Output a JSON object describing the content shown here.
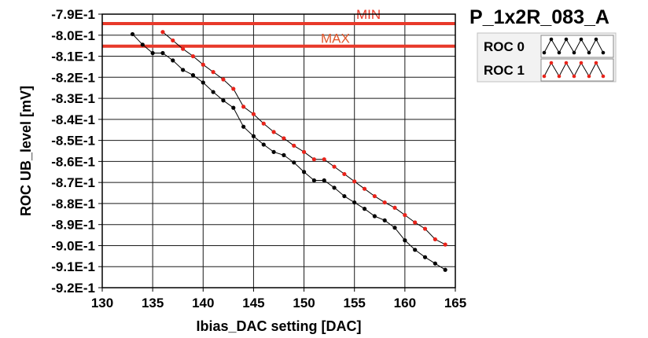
{
  "chart_data": {
    "type": "line",
    "title": "P_1x2R_083_A",
    "xlabel": "Ibias_DAC setting [DAC]",
    "ylabel": "ROC UB_level [mV]",
    "xlim": [
      130,
      165
    ],
    "ylim": [
      -0.92,
      -0.79
    ],
    "x_ticks": [
      130,
      135,
      140,
      145,
      150,
      155,
      160,
      165
    ],
    "x_tick_labels": [
      "130",
      "135",
      "140",
      "145",
      "150",
      "155",
      "160",
      "165"
    ],
    "y_ticks": [
      -0.79,
      -0.8,
      -0.81,
      -0.82,
      -0.83,
      -0.84,
      -0.85,
      -0.86,
      -0.87,
      -0.88,
      -0.89,
      -0.9,
      -0.91,
      -0.92
    ],
    "y_tick_labels": [
      "-7.9E-1",
      "-8.0E-1",
      "-8.1E-1",
      "-8.2E-1",
      "-8.3E-1",
      "-8.4E-1",
      "-8.5E-1",
      "-8.6E-1",
      "-8.7E-1",
      "-8.8E-1",
      "-8.9E-1",
      "-9.0E-1",
      "-9.1E-1",
      "-9.2E-1"
    ],
    "grid": true,
    "legend_position": "top-right",
    "limits": [
      {
        "label": "MIN",
        "value": -0.7945,
        "color": "#e8392a",
        "label_color": "#e8392a"
      },
      {
        "label": "MAX",
        "value": -0.8052,
        "color": "#e8392a",
        "label_color": "#e0562a"
      }
    ],
    "series": [
      {
        "name": "ROC 0",
        "color": "#000000",
        "x": [
          133,
          134,
          135,
          136,
          137,
          138,
          139,
          140,
          141,
          142,
          143,
          144,
          145,
          146,
          147,
          148,
          149,
          150,
          151,
          152,
          153,
          154,
          155,
          156,
          157,
          158,
          159,
          160,
          161,
          162,
          163,
          164
        ],
        "y": [
          -0.7995,
          -0.8045,
          -0.8085,
          -0.8085,
          -0.812,
          -0.8165,
          -0.819,
          -0.8225,
          -0.827,
          -0.831,
          -0.8345,
          -0.8435,
          -0.848,
          -0.852,
          -0.8555,
          -0.857,
          -0.8605,
          -0.865,
          -0.869,
          -0.869,
          -0.8725,
          -0.8765,
          -0.8795,
          -0.8825,
          -0.886,
          -0.888,
          -0.8915,
          -0.8975,
          -0.902,
          -0.9055,
          -0.9085,
          -0.9115
        ]
      },
      {
        "name": "ROC 1",
        "color": "#e8231a",
        "x": [
          136,
          137,
          138,
          139,
          140,
          141,
          142,
          143,
          144,
          145,
          146,
          147,
          148,
          149,
          150,
          151,
          152,
          153,
          154,
          155,
          156,
          157,
          158,
          159,
          160,
          161,
          162,
          163,
          164
        ],
        "y": [
          -0.7985,
          -0.8025,
          -0.8065,
          -0.81,
          -0.814,
          -0.8175,
          -0.821,
          -0.8255,
          -0.834,
          -0.8375,
          -0.842,
          -0.846,
          -0.849,
          -0.8525,
          -0.8555,
          -0.859,
          -0.859,
          -0.8625,
          -0.866,
          -0.8695,
          -0.873,
          -0.8765,
          -0.8795,
          -0.882,
          -0.8855,
          -0.889,
          -0.892,
          -0.897,
          -0.8995
        ]
      }
    ]
  }
}
